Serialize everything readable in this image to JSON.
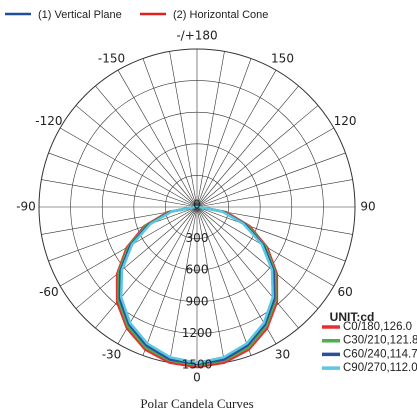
{
  "chart_data": {
    "type": "polar",
    "title": "Polar Candela Curves",
    "legend_top": [
      {
        "name": "(1) Vertical Plane",
        "color": "#1f4e9c"
      },
      {
        "name": "(2) Horizontal Cone",
        "color": "#e02020"
      }
    ],
    "unit_label": "UNIT:cd",
    "angles": [
      -90,
      -80,
      -70,
      -60,
      -50,
      -40,
      -30,
      -20,
      -10,
      0,
      10,
      20,
      30,
      40,
      50,
      60,
      70,
      80,
      90
    ],
    "series": [
      {
        "name": "C0/180,126.0",
        "color": "#e53030",
        "values": [
          20,
          280,
          530,
          770,
          990,
          1180,
          1330,
          1440,
          1500,
          1520,
          1500,
          1440,
          1330,
          1180,
          990,
          770,
          530,
          280,
          20
        ]
      },
      {
        "name": "C30/210,121.8",
        "color": "#4caf50",
        "values": [
          20,
          260,
          510,
          750,
          970,
          1160,
          1310,
          1420,
          1480,
          1500,
          1480,
          1420,
          1310,
          1160,
          970,
          750,
          510,
          260,
          20
        ]
      },
      {
        "name": "C60/240,114.7",
        "color": "#2a4fa0",
        "values": [
          20,
          250,
          490,
          730,
          950,
          1140,
          1290,
          1400,
          1470,
          1490,
          1470,
          1400,
          1290,
          1140,
          950,
          730,
          490,
          250,
          20
        ]
      },
      {
        "name": "C90/270,112.0",
        "color": "#5bc8e0",
        "values": [
          20,
          240,
          470,
          710,
          930,
          1120,
          1270,
          1380,
          1450,
          1480,
          1450,
          1380,
          1270,
          1120,
          930,
          710,
          470,
          240,
          20
        ]
      }
    ],
    "rlim": [
      0,
      1500
    ],
    "rticks": [
      0,
      300,
      600,
      900,
      1200,
      1500
    ],
    "angle_ticks": [
      {
        "value": 180,
        "label": "-/+180"
      },
      150,
      120,
      90,
      60,
      30,
      0,
      -30,
      -60,
      -90,
      -120,
      -150
    ],
    "grid": true
  }
}
